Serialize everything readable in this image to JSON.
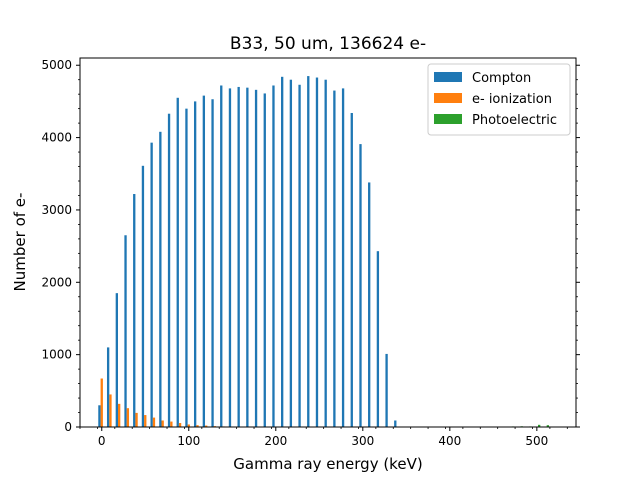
{
  "chart_data": {
    "type": "bar",
    "title": "B33, 50 um, 136624 e-",
    "xlabel": "Gamma ray energy (keV)",
    "ylabel": "Number of e-",
    "xlim": [
      -25,
      545
    ],
    "ylim": [
      0,
      5100
    ],
    "xticks": [
      0,
      100,
      200,
      300,
      400,
      500
    ],
    "yticks": [
      0,
      1000,
      2000,
      3000,
      4000,
      5000
    ],
    "legend_position": "top-right",
    "bin_width_kev": 10,
    "series": [
      {
        "name": "Compton",
        "color": "#1f77b4",
        "x": [
          0,
          10,
          20,
          30,
          40,
          50,
          60,
          70,
          80,
          90,
          100,
          110,
          120,
          130,
          140,
          150,
          160,
          170,
          180,
          190,
          200,
          210,
          220,
          230,
          240,
          250,
          260,
          270,
          280,
          290,
          300,
          310,
          320,
          330,
          340
        ],
        "values": [
          300,
          1100,
          1850,
          2650,
          3220,
          3610,
          3930,
          4080,
          4330,
          4550,
          4400,
          4500,
          4580,
          4530,
          4720,
          4680,
          4700,
          4690,
          4660,
          4610,
          4720,
          4840,
          4800,
          4730,
          4850,
          4830,
          4800,
          4650,
          4680,
          4340,
          3910,
          3380,
          2430,
          1010,
          90
        ]
      },
      {
        "name": "e- ionization",
        "color": "#ff7f0e",
        "x": [
          0,
          10,
          20,
          30,
          40,
          50,
          60,
          70,
          80,
          90,
          100,
          110,
          120,
          130,
          140
        ],
        "values": [
          670,
          450,
          320,
          260,
          195,
          165,
          130,
          90,
          75,
          55,
          35,
          25,
          20,
          12,
          8
        ]
      },
      {
        "name": "Photoelectric",
        "color": "#2ca02c",
        "x": [
          440,
          470,
          480,
          490,
          500,
          510
        ],
        "values": [
          5,
          8,
          10,
          8,
          30,
          25
        ]
      }
    ]
  }
}
